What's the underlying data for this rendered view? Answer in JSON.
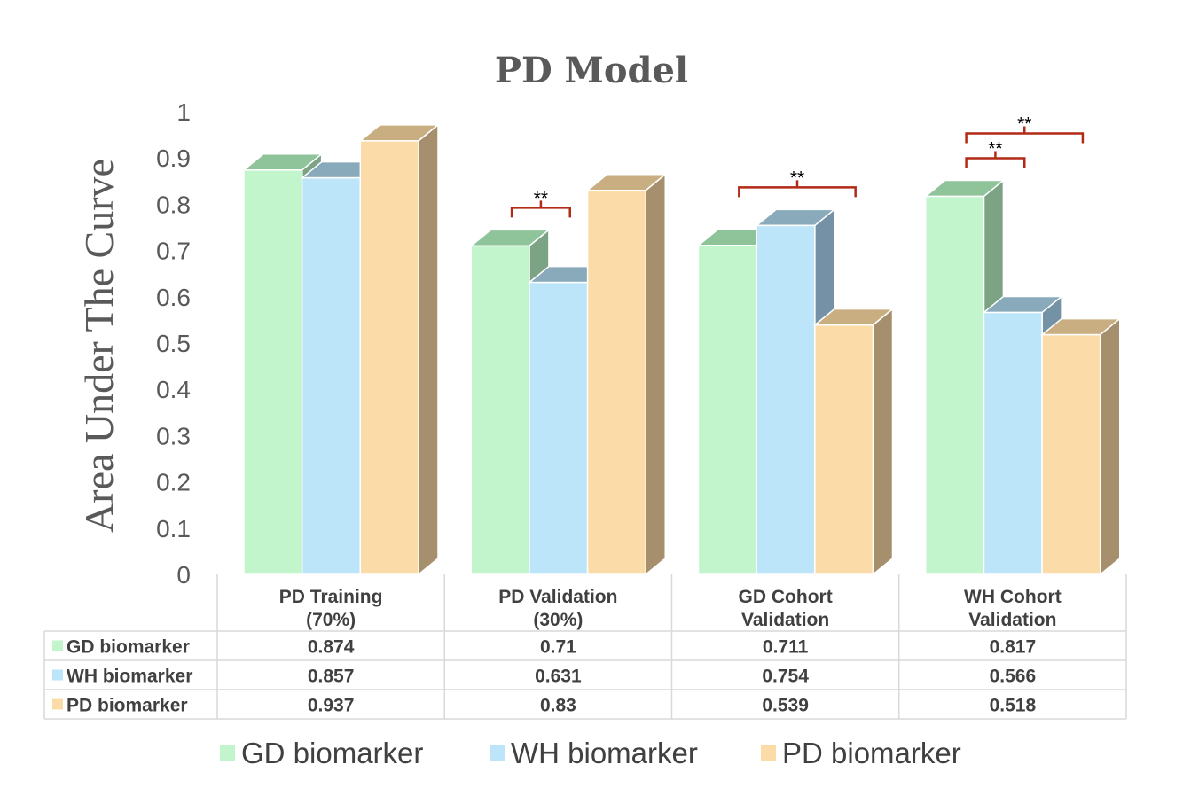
{
  "chart_data": {
    "type": "bar",
    "title": "PD Model",
    "ylabel": "Area Under The Curve",
    "xlabel": "",
    "ylim": [
      0,
      1
    ],
    "yticks": [
      "0",
      "0.1",
      "0.2",
      "0.3",
      "0.4",
      "0.5",
      "0.6",
      "0.7",
      "0.8",
      "0.9",
      "1"
    ],
    "categories": [
      [
        "PD Training",
        "(70%)"
      ],
      [
        "PD Validation",
        "(30%)"
      ],
      [
        "GD Cohort",
        "Validation"
      ],
      [
        "WH Cohort",
        "Validation"
      ]
    ],
    "series": [
      {
        "name": "GD biomarker",
        "values": [
          0.874,
          0.71,
          0.711,
          0.817
        ],
        "labels": [
          "0.874",
          "0.71",
          "0.711",
          "0.817"
        ],
        "color": "#c2f5cc",
        "top": "#8fc49b",
        "side": "#7ba384"
      },
      {
        "name": "WH biomarker",
        "values": [
          0.857,
          0.631,
          0.754,
          0.566
        ],
        "labels": [
          "0.857",
          "0.631",
          "0.754",
          "0.566"
        ],
        "color": "#bde5fa",
        "top": "#88aabb",
        "side": "#7591a5"
      },
      {
        "name": "PD biomarker",
        "values": [
          0.937,
          0.83,
          0.539,
          0.518
        ],
        "labels": [
          "0.937",
          "0.83",
          "0.539",
          "0.518"
        ],
        "color": "#fbdca9",
        "top": "#c8ae80",
        "side": "#a68f6c"
      }
    ],
    "annotations": [
      {
        "category": 1,
        "from": 0,
        "to": 1,
        "text": "**"
      },
      {
        "category": 2,
        "from": 0,
        "to": 2,
        "text": "**"
      },
      {
        "category": 3,
        "from": 0,
        "to": 1,
        "text": "**"
      },
      {
        "category": 3,
        "from": 0,
        "to": 2,
        "text": "**"
      }
    ],
    "annotation_color": "#b22a16",
    "legend": [
      "GD biomarker",
      "WH biomarker",
      "PD biomarker"
    ],
    "legend_position": "bottom",
    "data_table": true
  }
}
